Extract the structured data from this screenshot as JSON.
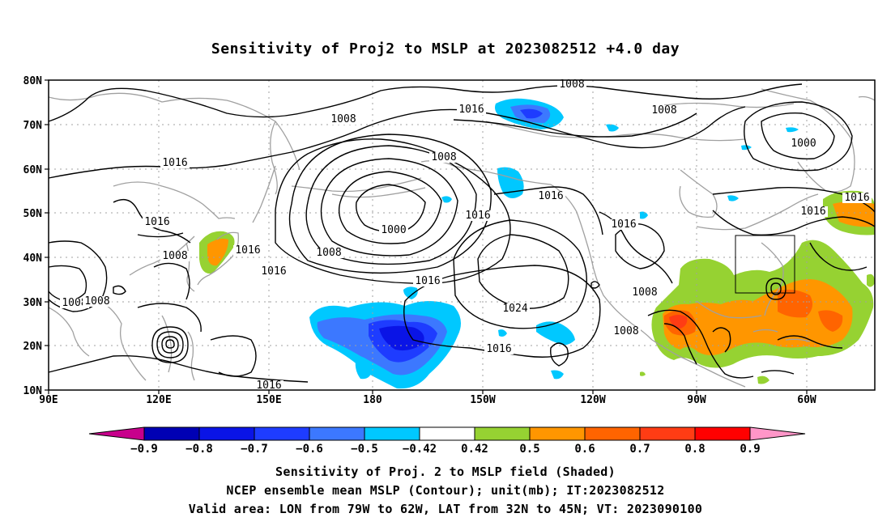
{
  "title": "Sensitivity of Proj2 to MSLP at 2023082512 +4.0 day",
  "footer": {
    "line1": "Sensitivity of Proj. 2 to MSLP field (Shaded)",
    "line2": "NCEP ensemble mean MSLP (Contour); unit(mb); IT:2023082512",
    "line3": "Valid area: LON from 79W to 62W, LAT from 32N to 45N; VT: 2023090100"
  },
  "axes": {
    "lat_labels": [
      "80N",
      "70N",
      "60N",
      "50N",
      "40N",
      "30N",
      "20N",
      "10N"
    ],
    "lon_labels": [
      "90E",
      "120E",
      "150E",
      "180",
      "150W",
      "120W",
      "90W",
      "60W"
    ]
  },
  "colorbar": {
    "labels": [
      "-0.9",
      "-0.8",
      "-0.7",
      "-0.6",
      "-0.5",
      "-0.42",
      "0.42",
      "0.5",
      "0.6",
      "0.7",
      "0.8",
      "0.9"
    ],
    "colors": [
      "#c8008c",
      "#0000b4",
      "#0a14e6",
      "#1e3cff",
      "#3c78ff",
      "#00c8ff",
      "#ffffff",
      "#96d232",
      "#ff9600",
      "#ff6400",
      "#ff3c14",
      "#ff0000",
      "#ff96c8"
    ]
  },
  "isobar_labels": [
    "1008",
    "1016",
    "1008",
    "1008",
    "1000",
    "1016",
    "1008",
    "1016",
    "1016",
    "1016",
    "1008",
    "1000",
    "1016",
    "1016",
    "1016",
    "1016",
    "1008",
    "1016",
    "1016",
    "1024",
    "1016",
    "1008",
    "1008",
    "1016",
    "1008",
    "1008"
  ],
  "valid_area": {
    "lon_min": -79,
    "lon_max": -62,
    "lat_min": 32,
    "lat_max": 45
  },
  "colors": {
    "coast": "#a0a0a0",
    "contour": "#000000",
    "grid": "#a0a0a0"
  }
}
